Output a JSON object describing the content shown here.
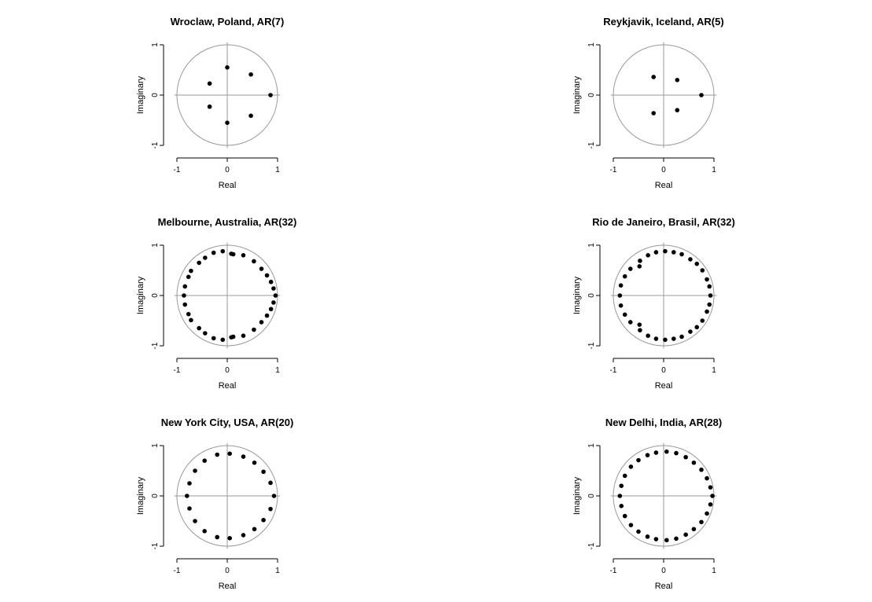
{
  "chart_data": [
    {
      "type": "scatter",
      "title": "Wroclaw, Poland, AR(7)",
      "xlabel": "Real",
      "ylabel": "Imaginary",
      "xlim": [
        -1,
        1
      ],
      "ylim": [
        -1,
        1
      ],
      "x_ticks": [
        "-1",
        "0",
        "1"
      ],
      "y_ticks": [
        "-1",
        "0",
        "1"
      ],
      "unit_circle": true,
      "reference_lines": [
        0,
        0
      ],
      "points": [
        {
          "x": 0.86,
          "y": 0.0
        },
        {
          "x": 0.47,
          "y": 0.41
        },
        {
          "x": 0.47,
          "y": -0.41
        },
        {
          "x": 0.0,
          "y": 0.55
        },
        {
          "x": 0.0,
          "y": -0.55
        },
        {
          "x": -0.35,
          "y": 0.23
        },
        {
          "x": -0.35,
          "y": -0.23
        }
      ]
    },
    {
      "type": "scatter",
      "title": "Reykjavik, Iceland, AR(5)",
      "xlabel": "Real",
      "ylabel": "Imaginary",
      "xlim": [
        -1,
        1
      ],
      "ylim": [
        -1,
        1
      ],
      "x_ticks": [
        "-1",
        "0",
        "1"
      ],
      "y_ticks": [
        "-1",
        "0",
        "1"
      ],
      "unit_circle": true,
      "reference_lines": [
        0,
        0
      ],
      "points": [
        {
          "x": 0.75,
          "y": 0.0
        },
        {
          "x": 0.27,
          "y": 0.3
        },
        {
          "x": 0.27,
          "y": -0.3
        },
        {
          "x": -0.2,
          "y": 0.36
        },
        {
          "x": -0.2,
          "y": -0.36
        }
      ]
    },
    {
      "type": "scatter",
      "title": "Melbourne, Australia, AR(32)",
      "xlabel": "Real",
      "ylabel": "Imaginary",
      "xlim": [
        -1,
        1
      ],
      "ylim": [
        -1,
        1
      ],
      "x_ticks": [
        "-1",
        "0",
        "1"
      ],
      "y_ticks": [
        "-1",
        "0",
        "1"
      ],
      "unit_circle": true,
      "reference_lines": [
        0,
        0
      ],
      "points": [
        {
          "x": 0.96,
          "y": 0.0
        },
        {
          "x": 0.92,
          "y": 0.14
        },
        {
          "x": 0.87,
          "y": 0.27
        },
        {
          "x": 0.79,
          "y": 0.4
        },
        {
          "x": 0.68,
          "y": 0.53
        },
        {
          "x": 0.53,
          "y": 0.68
        },
        {
          "x": 0.32,
          "y": 0.8
        },
        {
          "x": 0.12,
          "y": 0.82
        },
        {
          "x": 0.08,
          "y": 0.83
        },
        {
          "x": -0.09,
          "y": 0.88
        },
        {
          "x": -0.27,
          "y": 0.85
        },
        {
          "x": -0.44,
          "y": 0.75
        },
        {
          "x": -0.56,
          "y": 0.65
        },
        {
          "x": -0.72,
          "y": 0.49
        },
        {
          "x": -0.77,
          "y": 0.37
        },
        {
          "x": -0.84,
          "y": 0.18
        },
        {
          "x": -0.86,
          "y": 0.0
        },
        {
          "x": -0.84,
          "y": -0.18
        },
        {
          "x": -0.77,
          "y": -0.37
        },
        {
          "x": -0.72,
          "y": -0.49
        },
        {
          "x": -0.56,
          "y": -0.65
        },
        {
          "x": -0.44,
          "y": -0.75
        },
        {
          "x": -0.27,
          "y": -0.85
        },
        {
          "x": -0.09,
          "y": -0.88
        },
        {
          "x": 0.08,
          "y": -0.83
        },
        {
          "x": 0.12,
          "y": -0.82
        },
        {
          "x": 0.32,
          "y": -0.8
        },
        {
          "x": 0.53,
          "y": -0.68
        },
        {
          "x": 0.68,
          "y": -0.53
        },
        {
          "x": 0.79,
          "y": -0.4
        },
        {
          "x": 0.87,
          "y": -0.27
        },
        {
          "x": 0.92,
          "y": -0.14
        }
      ]
    },
    {
      "type": "scatter",
      "title": "Rio de Janeiro, Brasil, AR(32)",
      "xlabel": "Real",
      "ylabel": "Imaginary",
      "xlim": [
        -1,
        1
      ],
      "ylim": [
        -1,
        1
      ],
      "x_ticks": [
        "-1",
        "0",
        "1"
      ],
      "y_ticks": [
        "-1",
        "0",
        "1"
      ],
      "unit_circle": true,
      "reference_lines": [
        0,
        0
      ],
      "points": [
        {
          "x": 0.93,
          "y": 0.0
        },
        {
          "x": 0.91,
          "y": 0.18
        },
        {
          "x": 0.86,
          "y": 0.32
        },
        {
          "x": 0.77,
          "y": 0.5
        },
        {
          "x": 0.66,
          "y": 0.63
        },
        {
          "x": 0.53,
          "y": 0.72
        },
        {
          "x": 0.36,
          "y": 0.82
        },
        {
          "x": 0.2,
          "y": 0.86
        },
        {
          "x": 0.03,
          "y": 0.88
        },
        {
          "x": -0.15,
          "y": 0.86
        },
        {
          "x": -0.31,
          "y": 0.8
        },
        {
          "x": -0.47,
          "y": 0.69
        },
        {
          "x": -0.48,
          "y": 0.58
        },
        {
          "x": -0.66,
          "y": 0.53
        },
        {
          "x": -0.77,
          "y": 0.38
        },
        {
          "x": -0.85,
          "y": 0.2
        },
        {
          "x": -0.87,
          "y": 0.0
        },
        {
          "x": -0.85,
          "y": -0.2
        },
        {
          "x": -0.77,
          "y": -0.38
        },
        {
          "x": -0.66,
          "y": -0.53
        },
        {
          "x": -0.48,
          "y": -0.58
        },
        {
          "x": -0.47,
          "y": -0.69
        },
        {
          "x": -0.31,
          "y": -0.8
        },
        {
          "x": -0.15,
          "y": -0.86
        },
        {
          "x": 0.03,
          "y": -0.88
        },
        {
          "x": 0.2,
          "y": -0.86
        },
        {
          "x": 0.36,
          "y": -0.82
        },
        {
          "x": 0.53,
          "y": -0.72
        },
        {
          "x": 0.66,
          "y": -0.63
        },
        {
          "x": 0.77,
          "y": -0.5
        },
        {
          "x": 0.86,
          "y": -0.32
        },
        {
          "x": 0.91,
          "y": -0.18
        }
      ]
    },
    {
      "type": "scatter",
      "title": "New York City, USA, AR(20)",
      "xlabel": "Real",
      "ylabel": "Imaginary",
      "xlim": [
        -1,
        1
      ],
      "ylim": [
        -1,
        1
      ],
      "x_ticks": [
        "-1",
        "0",
        "1"
      ],
      "y_ticks": [
        "-1",
        "0",
        "1"
      ],
      "unit_circle": true,
      "reference_lines": [
        0,
        0
      ],
      "points": [
        {
          "x": 0.93,
          "y": 0.0
        },
        {
          "x": 0.86,
          "y": 0.26
        },
        {
          "x": 0.72,
          "y": 0.48
        },
        {
          "x": 0.54,
          "y": 0.66
        },
        {
          "x": 0.32,
          "y": 0.78
        },
        {
          "x": 0.05,
          "y": 0.84
        },
        {
          "x": -0.2,
          "y": 0.82
        },
        {
          "x": -0.45,
          "y": 0.7
        },
        {
          "x": -0.64,
          "y": 0.5
        },
        {
          "x": -0.75,
          "y": 0.25
        },
        {
          "x": -0.8,
          "y": 0.0
        },
        {
          "x": -0.75,
          "y": -0.25
        },
        {
          "x": -0.64,
          "y": -0.5
        },
        {
          "x": -0.45,
          "y": -0.7
        },
        {
          "x": -0.2,
          "y": -0.82
        },
        {
          "x": 0.05,
          "y": -0.84
        },
        {
          "x": 0.32,
          "y": -0.78
        },
        {
          "x": 0.54,
          "y": -0.66
        },
        {
          "x": 0.72,
          "y": -0.48
        },
        {
          "x": 0.86,
          "y": -0.26
        }
      ]
    },
    {
      "type": "scatter",
      "title": "New Delhi, India, AR(28)",
      "xlabel": "Real",
      "ylabel": "Imaginary",
      "xlim": [
        -1,
        1
      ],
      "ylim": [
        -1,
        1
      ],
      "x_ticks": [
        "-1",
        "0",
        "1"
      ],
      "y_ticks": [
        "-1",
        "0",
        "1"
      ],
      "unit_circle": true,
      "reference_lines": [
        0,
        0
      ],
      "points": [
        {
          "x": 0.97,
          "y": 0.0
        },
        {
          "x": 0.93,
          "y": 0.17
        },
        {
          "x": 0.86,
          "y": 0.35
        },
        {
          "x": 0.75,
          "y": 0.52
        },
        {
          "x": 0.6,
          "y": 0.66
        },
        {
          "x": 0.44,
          "y": 0.77
        },
        {
          "x": 0.25,
          "y": 0.85
        },
        {
          "x": 0.06,
          "y": 0.88
        },
        {
          "x": -0.15,
          "y": 0.86
        },
        {
          "x": -0.32,
          "y": 0.81
        },
        {
          "x": -0.5,
          "y": 0.71
        },
        {
          "x": -0.65,
          "y": 0.58
        },
        {
          "x": -0.77,
          "y": 0.4
        },
        {
          "x": -0.84,
          "y": 0.2
        },
        {
          "x": -0.87,
          "y": 0.0
        },
        {
          "x": -0.84,
          "y": -0.2
        },
        {
          "x": -0.77,
          "y": -0.4
        },
        {
          "x": -0.65,
          "y": -0.58
        },
        {
          "x": -0.5,
          "y": -0.71
        },
        {
          "x": -0.32,
          "y": -0.81
        },
        {
          "x": -0.15,
          "y": -0.86
        },
        {
          "x": 0.06,
          "y": -0.88
        },
        {
          "x": 0.25,
          "y": -0.85
        },
        {
          "x": 0.44,
          "y": -0.77
        },
        {
          "x": 0.6,
          "y": -0.66
        },
        {
          "x": 0.75,
          "y": -0.52
        },
        {
          "x": 0.86,
          "y": -0.35
        },
        {
          "x": 0.93,
          "y": -0.17
        }
      ]
    }
  ]
}
